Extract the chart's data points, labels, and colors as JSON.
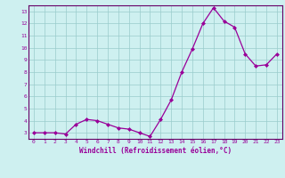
{
  "x_data": [
    0,
    1,
    2,
    3,
    4,
    5,
    6,
    7,
    8,
    9,
    10,
    11,
    12,
    13,
    14,
    15,
    16,
    17,
    18,
    19,
    20,
    21,
    22,
    23
  ],
  "y_data": [
    3.0,
    3.0,
    3.0,
    2.9,
    3.7,
    4.1,
    4.0,
    3.7,
    3.4,
    3.3,
    3.0,
    2.7,
    4.1,
    5.7,
    8.0,
    9.9,
    12.0,
    13.3,
    12.2,
    11.7,
    9.5,
    8.5,
    8.6,
    9.5
  ],
  "line_color": "#990099",
  "marker_color": "#990099",
  "bg_color": "#cef0f0",
  "grid_color": "#99cccc",
  "xlabel": "Windchill (Refroidissement éolien,°C)",
  "xlabel_color": "#990099",
  "tick_color": "#990099",
  "axis_color": "#660066",
  "ylim": [
    2.5,
    13.5
  ],
  "xlim": [
    -0.5,
    23.5
  ],
  "yticks": [
    3,
    4,
    5,
    6,
    7,
    8,
    9,
    10,
    11,
    12,
    13
  ],
  "xticks": [
    0,
    1,
    2,
    3,
    4,
    5,
    6,
    7,
    8,
    9,
    10,
    11,
    12,
    13,
    14,
    15,
    16,
    17,
    18,
    19,
    20,
    21,
    22,
    23
  ]
}
